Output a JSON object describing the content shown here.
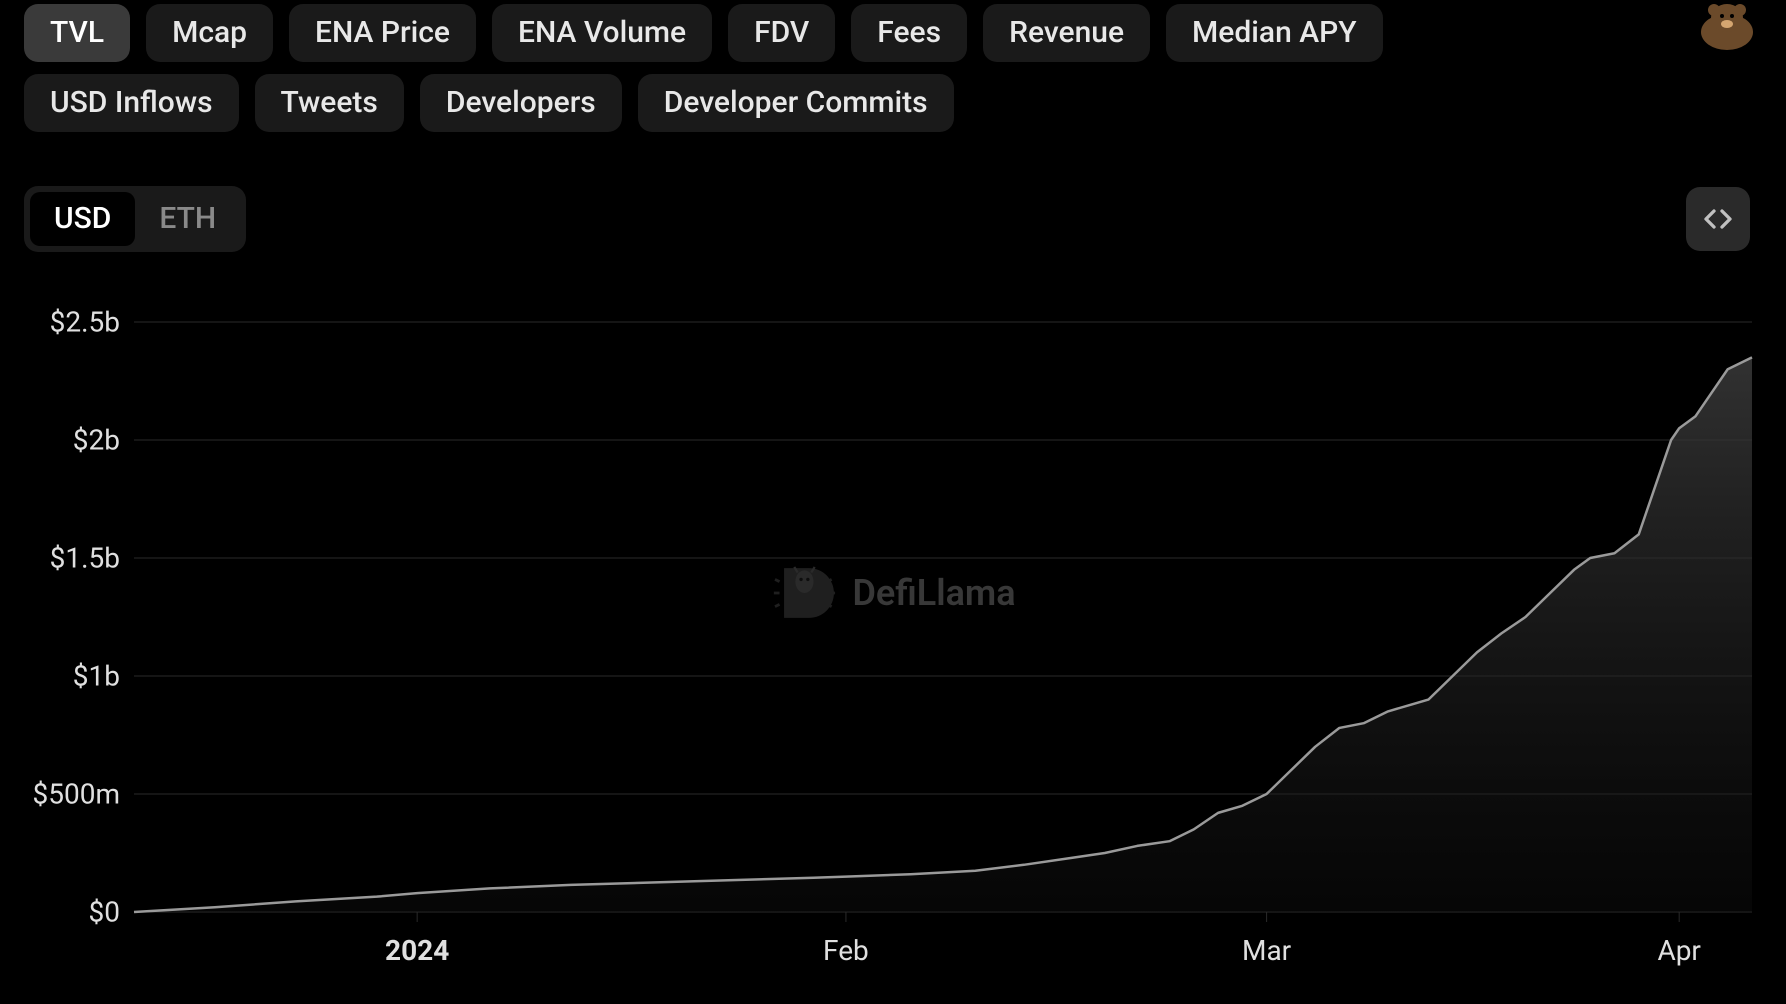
{
  "tabs": {
    "row1": [
      {
        "key": "tvl",
        "label": "TVL",
        "active": true
      },
      {
        "key": "mcap",
        "label": "Mcap",
        "active": false
      },
      {
        "key": "ena_price",
        "label": "ENA Price",
        "active": false
      },
      {
        "key": "ena_volume",
        "label": "ENA Volume",
        "active": false
      },
      {
        "key": "fdv",
        "label": "FDV",
        "active": false
      },
      {
        "key": "fees",
        "label": "Fees",
        "active": false
      },
      {
        "key": "revenue",
        "label": "Revenue",
        "active": false
      },
      {
        "key": "median_apy",
        "label": "Median APY",
        "active": false
      }
    ],
    "row2": [
      {
        "key": "usd_inflows",
        "label": "USD Inflows",
        "active": false
      },
      {
        "key": "tweets",
        "label": "Tweets",
        "active": false
      },
      {
        "key": "developers",
        "label": "Developers",
        "active": false
      },
      {
        "key": "dev_commits",
        "label": "Developer Commits",
        "active": false
      }
    ]
  },
  "currency": {
    "options": [
      {
        "key": "usd",
        "label": "USD",
        "active": true
      },
      {
        "key": "eth",
        "label": "ETH",
        "active": false
      }
    ]
  },
  "chart": {
    "type": "area",
    "watermark_text": "DefiLlama",
    "background_color": "#000000",
    "grid_color": "#2a2a2a",
    "line_color": "#9a9a9a",
    "line_width": 2.5,
    "area_fill_top": "#3a3a3a",
    "area_fill_bottom": "#141414",
    "fill_opacity": 0.85,
    "y_axis": {
      "min": 0,
      "max": 2500000000,
      "ticks": [
        {
          "value": 0,
          "label": "$0"
        },
        {
          "value": 500000000,
          "label": "$500m"
        },
        {
          "value": 1000000000,
          "label": "$1b"
        },
        {
          "value": 1500000000,
          "label": "$1.5b"
        },
        {
          "value": 2000000000,
          "label": "$2b"
        },
        {
          "value": 2500000000,
          "label": "$2.5b"
        }
      ],
      "label_color": "#e0e0e0",
      "label_fontsize": 28
    },
    "x_axis": {
      "ticks": [
        {
          "pos": 0.175,
          "label": "2024",
          "bold": true
        },
        {
          "pos": 0.44,
          "label": "Feb",
          "bold": false
        },
        {
          "pos": 0.7,
          "label": "Mar",
          "bold": false
        },
        {
          "pos": 0.955,
          "label": "Apr",
          "bold": false
        }
      ],
      "label_color": "#e0e0e0",
      "label_fontsize": 28
    },
    "series": [
      {
        "x": 0.0,
        "y": 0
      },
      {
        "x": 0.05,
        "y": 20000000
      },
      {
        "x": 0.1,
        "y": 45000000
      },
      {
        "x": 0.15,
        "y": 65000000
      },
      {
        "x": 0.175,
        "y": 80000000
      },
      {
        "x": 0.22,
        "y": 100000000
      },
      {
        "x": 0.27,
        "y": 115000000
      },
      {
        "x": 0.32,
        "y": 125000000
      },
      {
        "x": 0.37,
        "y": 135000000
      },
      {
        "x": 0.42,
        "y": 145000000
      },
      {
        "x": 0.44,
        "y": 150000000
      },
      {
        "x": 0.48,
        "y": 160000000
      },
      {
        "x": 0.52,
        "y": 175000000
      },
      {
        "x": 0.55,
        "y": 200000000
      },
      {
        "x": 0.58,
        "y": 230000000
      },
      {
        "x": 0.6,
        "y": 250000000
      },
      {
        "x": 0.62,
        "y": 280000000
      },
      {
        "x": 0.64,
        "y": 300000000
      },
      {
        "x": 0.655,
        "y": 350000000
      },
      {
        "x": 0.67,
        "y": 420000000
      },
      {
        "x": 0.685,
        "y": 450000000
      },
      {
        "x": 0.7,
        "y": 500000000
      },
      {
        "x": 0.715,
        "y": 600000000
      },
      {
        "x": 0.73,
        "y": 700000000
      },
      {
        "x": 0.745,
        "y": 780000000
      },
      {
        "x": 0.76,
        "y": 800000000
      },
      {
        "x": 0.775,
        "y": 850000000
      },
      {
        "x": 0.79,
        "y": 880000000
      },
      {
        "x": 0.8,
        "y": 900000000
      },
      {
        "x": 0.815,
        "y": 1000000000
      },
      {
        "x": 0.83,
        "y": 1100000000
      },
      {
        "x": 0.845,
        "y": 1180000000
      },
      {
        "x": 0.86,
        "y": 1250000000
      },
      {
        "x": 0.875,
        "y": 1350000000
      },
      {
        "x": 0.89,
        "y": 1450000000
      },
      {
        "x": 0.9,
        "y": 1500000000
      },
      {
        "x": 0.915,
        "y": 1520000000
      },
      {
        "x": 0.93,
        "y": 1600000000
      },
      {
        "x": 0.94,
        "y": 1800000000
      },
      {
        "x": 0.95,
        "y": 2000000000
      },
      {
        "x": 0.955,
        "y": 2050000000
      },
      {
        "x": 0.965,
        "y": 2100000000
      },
      {
        "x": 0.975,
        "y": 2200000000
      },
      {
        "x": 0.985,
        "y": 2300000000
      },
      {
        "x": 1.0,
        "y": 2350000000
      }
    ]
  }
}
